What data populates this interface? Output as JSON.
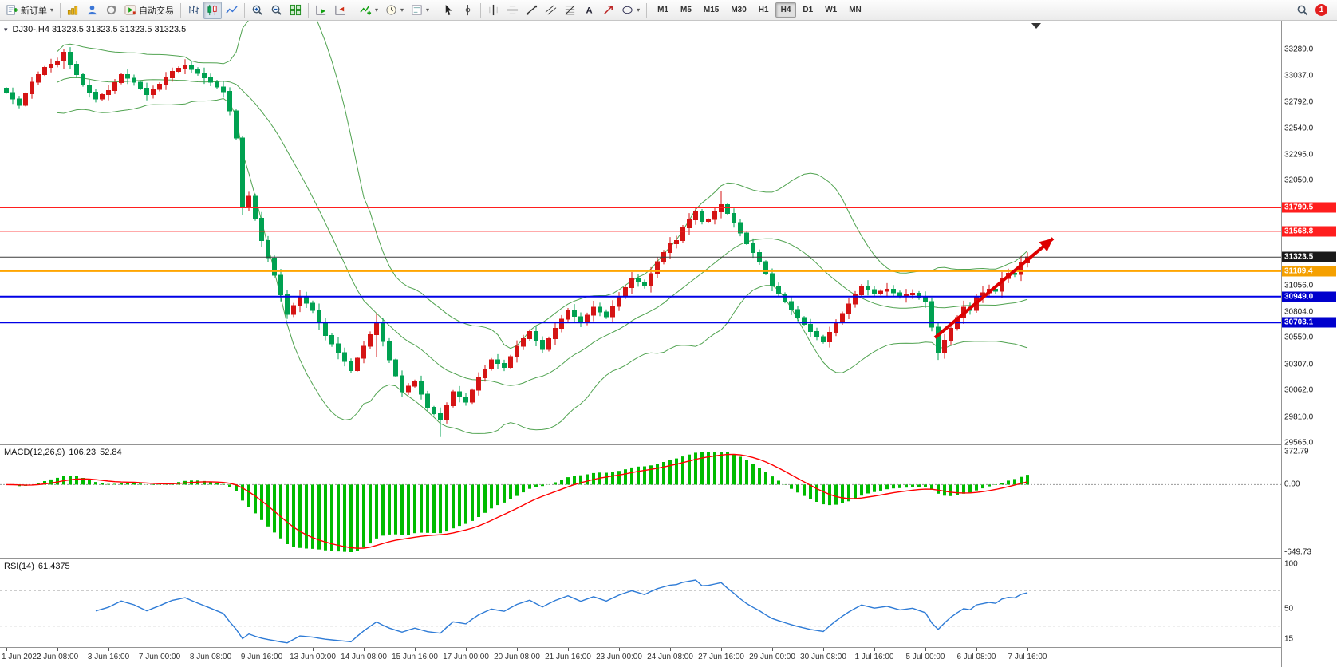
{
  "toolbar": {
    "items": [
      {
        "name": "new-order-button",
        "label": "新订单",
        "icon": "neworder",
        "caret": true
      },
      {
        "type": "sep"
      },
      {
        "name": "new-chart-button",
        "icon": "newchart"
      },
      {
        "name": "profiles-button",
        "icon": "profiles"
      },
      {
        "name": "refresh-button",
        "icon": "refresh"
      },
      {
        "name": "autotrading-button",
        "label": "自动交易",
        "icon": "autotrading"
      },
      {
        "type": "sep"
      },
      {
        "name": "bar-chart-button",
        "icon": "bars"
      },
      {
        "name": "candlestick-chart-button",
        "icon": "candles",
        "active": true
      },
      {
        "name": "line-chart-button",
        "icon": "linechart"
      },
      {
        "type": "sep"
      },
      {
        "name": "zoom-in-button",
        "icon": "zoomin"
      },
      {
        "name": "zoom-out-button",
        "icon": "zoomout"
      },
      {
        "name": "tile-windows-button",
        "icon": "tile"
      },
      {
        "type": "sep"
      },
      {
        "name": "auto-scroll-button",
        "icon": "autoscroll"
      },
      {
        "name": "chart-shift-button",
        "icon": "shift"
      },
      {
        "type": "sep"
      },
      {
        "name": "indicators-button",
        "icon": "indicator",
        "caret": true
      },
      {
        "name": "periods-button",
        "icon": "clock",
        "caret": true
      },
      {
        "name": "templates-button",
        "icon": "template",
        "caret": true
      },
      {
        "type": "sep"
      },
      {
        "name": "cursor-button",
        "icon": "cursor"
      },
      {
        "name": "crosshair-button",
        "icon": "crosshair"
      },
      {
        "type": "sep"
      },
      {
        "name": "vertical-line-button",
        "icon": "vline"
      },
      {
        "name": "horizontal-line-button",
        "icon": "hline"
      },
      {
        "name": "trendline-button",
        "icon": "trend"
      },
      {
        "name": "channel-button",
        "icon": "channel"
      },
      {
        "name": "fibonacci-button",
        "icon": "fibo"
      },
      {
        "name": "text-button",
        "icon": "text"
      },
      {
        "name": "arrows-button",
        "icon": "arrows"
      },
      {
        "name": "shapes-button",
        "icon": "shapes",
        "caret": true
      },
      {
        "type": "sep"
      }
    ],
    "timeframes": [
      "M1",
      "M5",
      "M15",
      "M30",
      "H1",
      "H4",
      "D1",
      "W1",
      "MN"
    ],
    "active_timeframe": "H4",
    "notification_count": "1"
  },
  "chart": {
    "symbol_title": "DJ30-,H4 31323.5 31323.5 31323.5 31323.5"
  },
  "macd": {
    "name": "MACD(12,26,9)",
    "main_value": "106.23",
    "signal_value": "52.84",
    "axis_max": "372.79",
    "axis_zero": "0.00",
    "axis_min": "-649.73"
  },
  "rsi": {
    "name": "RSI(14)",
    "value": "61.4375",
    "axis_ticks": [
      {
        "label": "100",
        "value": 100
      },
      {
        "label": "50",
        "value": 50
      },
      {
        "label": "15",
        "value": 15
      }
    ],
    "levels": [
      70,
      30
    ]
  },
  "colors": {
    "candle_up": "#d51414",
    "candle_down": "#00a151",
    "bollinger": "#51a351",
    "macd_hist": "#00bb00",
    "macd_signal": "#ff0000",
    "rsi_line": "#2e7bd6",
    "arrow": "#dd0000"
  },
  "chart_data": {
    "type": "candlestick",
    "symbol": "DJ30-",
    "timeframe": "H4",
    "bars_per_label": 8,
    "x_time_labels": [
      "1 Jun 2022",
      "2 Jun 08:00",
      "3 Jun 16:00",
      "7 Jun 00:00",
      "8 Jun 08:00",
      "9 Jun 16:00",
      "13 Jun 00:00",
      "14 Jun 08:00",
      "15 Jun 16:00",
      "17 Jun 00:00",
      "20 Jun 08:00",
      "21 Jun 16:00",
      "23 Jun 00:00",
      "24 Jun 08:00",
      "27 Jun 16:00",
      "29 Jun 00:00",
      "30 Jun 08:00",
      "1 Jul 16:00",
      "5 Jul 00:00",
      "6 Jul 08:00",
      "7 Jul 16:00"
    ],
    "y_axis_ticks": [
      33289,
      33037,
      32792,
      32540,
      32295,
      32050,
      31056,
      30804,
      30559,
      30307,
      30062,
      29810,
      29565
    ],
    "first_open": 32920,
    "closes": [
      32880,
      32820,
      32760,
      32870,
      32980,
      33050,
      33120,
      33150,
      33180,
      33260,
      33150,
      33050,
      32950,
      32885,
      32820,
      32860,
      32900,
      32975,
      33050,
      33015,
      32980,
      32920,
      32860,
      32910,
      32960,
      33020,
      33080,
      33110,
      33140,
      33100,
      33060,
      33020,
      32980,
      32935,
      32890,
      32705,
      32450,
      31800,
      31900,
      31690,
      31480,
      31315,
      31150,
      30965,
      30780,
      30865,
      30950,
      30885,
      30820,
      30700,
      30580,
      30500,
      30420,
      30335,
      30250,
      30365,
      30480,
      30590,
      30700,
      30525,
      30350,
      30200,
      30050,
      30100,
      30150,
      30025,
      29900,
      29840,
      29780,
      29915,
      30050,
      30000,
      29950,
      30065,
      30180,
      30265,
      30350,
      30315,
      30280,
      30380,
      30480,
      30550,
      30620,
      30535,
      30450,
      30550,
      30650,
      30735,
      30820,
      30760,
      30700,
      30775,
      30850,
      30805,
      30760,
      30855,
      30950,
      31035,
      31120,
      31085,
      31050,
      31165,
      31280,
      31365,
      31450,
      31480,
      31600,
      31675,
      31750,
      31660,
      31680,
      31750,
      31820,
      31735,
      31650,
      31550,
      31450,
      31365,
      31280,
      31165,
      31050,
      30975,
      30900,
      30825,
      30750,
      30685,
      30620,
      30570,
      30520,
      30610,
      30700,
      30790,
      30880,
      30965,
      31050,
      31015,
      30980,
      31000,
      31020,
      30985,
      30950,
      30965,
      30980,
      30940,
      30900,
      30660,
      30420,
      30535,
      30650,
      30750,
      30850,
      30820,
      30950,
      30985,
      31020,
      31000,
      31120,
      31170,
      31160,
      31270,
      31323.5
    ],
    "wick_overrides": {
      "9": [
        33289,
        33100
      ],
      "37": [
        32470,
        31720
      ],
      "58": [
        30790,
        30380
      ],
      "68": [
        29900,
        29620
      ],
      "112": [
        31950,
        31690
      ],
      "146": [
        30700,
        30350
      ]
    },
    "horizontal_lines": [
      {
        "price": 31790.5,
        "label": "31790.5",
        "color": "#ff1e1e",
        "badge": "#ff1e1e",
        "width": 1.4
      },
      {
        "price": 31568.8,
        "label": "31568.8",
        "color": "#ff1e1e",
        "badge": "#ff1e1e",
        "width": 1.4
      },
      {
        "price": 31323.5,
        "label": "31323.5",
        "color": "#3a3a3a",
        "badge": "#1a1a1a",
        "width": 1,
        "current": true
      },
      {
        "price": 31189.4,
        "label": "31189.4",
        "color": "#ffa500",
        "badge": "#f5a000",
        "width": 2
      },
      {
        "price": 30949.0,
        "label": "30949.0",
        "color": "#0000e6",
        "badge": "#0000cd",
        "width": 2
      },
      {
        "price": 30703.1,
        "label": "30703.1",
        "color": "#0000e6",
        "badge": "#0000cd",
        "width": 2
      }
    ],
    "trend_arrow": {
      "from_bar": 145.5,
      "from_price": 30560,
      "to_bar": 164,
      "to_price": 31500
    },
    "indicators": {
      "bollinger": {
        "period": 20,
        "deviation": 2
      },
      "macd": {
        "fast": 12,
        "slow": 26,
        "signal": 9
      },
      "rsi": {
        "period": 14
      }
    }
  }
}
